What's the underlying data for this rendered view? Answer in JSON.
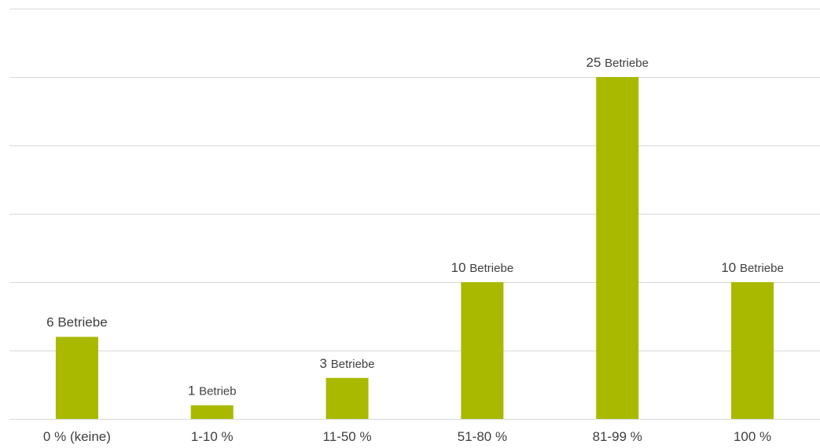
{
  "chart_data": {
    "type": "bar",
    "title": "",
    "xlabel": "",
    "ylabel": "",
    "categories": [
      "0 % (keine)",
      "1-10 %",
      "11-50 %",
      "51-80 %",
      "81-99 %",
      "100 %"
    ],
    "values": [
      6,
      1,
      3,
      10,
      25,
      10
    ],
    "value_labels": [
      {
        "num": "6",
        "unit": "Betriebe"
      },
      {
        "num": "1",
        "unit": "Betrieb"
      },
      {
        "num": "3",
        "unit": "Betriebe"
      },
      {
        "num": "10",
        "unit": "Betriebe"
      },
      {
        "num": "25",
        "unit": "Betriebe"
      },
      {
        "num": "10",
        "unit": "Betriebe"
      }
    ],
    "ylim": [
      0,
      30
    ],
    "grid": true,
    "bar_color": "#a8b900",
    "grid_color": "#d9d9d9"
  }
}
